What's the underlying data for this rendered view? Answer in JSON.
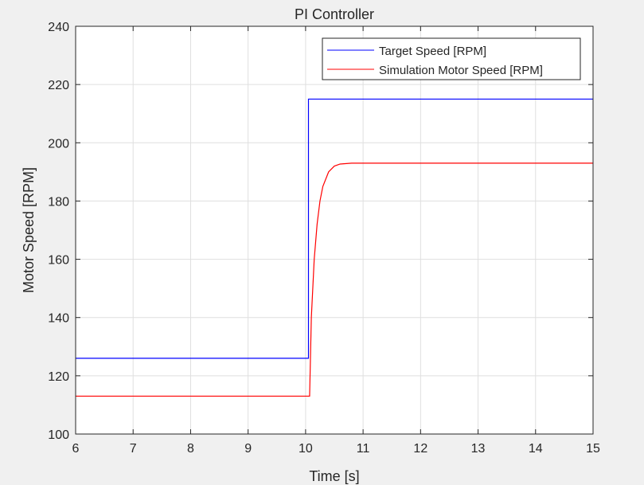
{
  "chart_data": {
    "type": "line",
    "title": "PI Controller",
    "xlabel": "Time [s]",
    "ylabel": "Motor Speed [RPM]",
    "xlim": [
      6,
      15
    ],
    "ylim": [
      100,
      240
    ],
    "xticks": [
      6,
      7,
      8,
      9,
      10,
      11,
      12,
      13,
      14,
      15
    ],
    "yticks": [
      100,
      120,
      140,
      160,
      180,
      200,
      220,
      240
    ],
    "grid": true,
    "legend": "top-right",
    "series": [
      {
        "name": "Target Speed [RPM]",
        "color": "#0000ff",
        "x": [
          6,
          10.05,
          10.05,
          15
        ],
        "y": [
          126,
          126,
          215,
          215
        ]
      },
      {
        "name": "Simulation Motor Speed [RPM]",
        "color": "#ff0000",
        "x": [
          6,
          10.07,
          10.1,
          10.15,
          10.2,
          10.25,
          10.3,
          10.4,
          10.5,
          10.6,
          10.8,
          11.0,
          15
        ],
        "y": [
          113,
          113,
          140,
          160,
          172,
          180,
          185,
          190,
          192,
          192.7,
          193,
          193,
          193
        ]
      }
    ]
  }
}
